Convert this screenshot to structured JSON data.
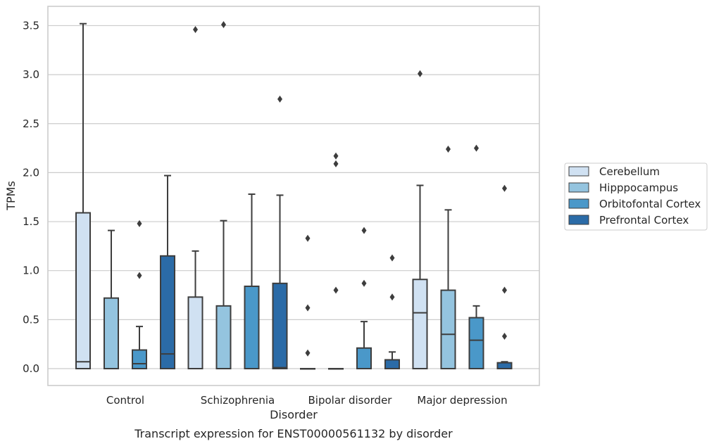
{
  "chart_data": {
    "type": "box",
    "caption": "Transcript expression for ENST00000561132 by disorder",
    "xlabel": "Disorder",
    "ylabel": "TPMs",
    "ylim": [
      -0.17,
      3.7
    ],
    "yticks": [
      0.0,
      0.5,
      1.0,
      1.5,
      2.0,
      2.5,
      3.0,
      3.5
    ],
    "ytick_labels": [
      "0.0",
      "0.5",
      "1.0",
      "1.5",
      "2.0",
      "2.5",
      "3.0",
      "3.5"
    ],
    "categories": [
      "Control",
      "Schizophrenia",
      "Bipolar disorder",
      "Major depression"
    ],
    "grid": "horizontal",
    "legend_position": "center-right",
    "series": [
      {
        "name": "Cerebellum",
        "color": "#d0e1f2",
        "boxes": [
          {
            "q1": 0.0,
            "median": 0.07,
            "q3": 1.59,
            "whisker_low": 0.0,
            "whisker_high": 3.52,
            "outliers": []
          },
          {
            "q1": 0.0,
            "median": 0.0,
            "q3": 0.73,
            "whisker_low": 0.0,
            "whisker_high": 1.2,
            "outliers": [
              3.46
            ]
          },
          {
            "q1": 0.0,
            "median": 0.0,
            "q3": 0.0,
            "whisker_low": 0.0,
            "whisker_high": 0.0,
            "outliers": [
              0.16,
              0.62,
              1.33
            ]
          },
          {
            "q1": 0.0,
            "median": 0.57,
            "q3": 0.91,
            "whisker_low": 0.0,
            "whisker_high": 1.87,
            "outliers": [
              3.01
            ]
          }
        ]
      },
      {
        "name": "Hipppocampus",
        "color": "#94c4df",
        "boxes": [
          {
            "q1": 0.0,
            "median": 0.0,
            "q3": 0.72,
            "whisker_low": 0.0,
            "whisker_high": 1.41,
            "outliers": []
          },
          {
            "q1": 0.0,
            "median": 0.0,
            "q3": 0.64,
            "whisker_low": 0.0,
            "whisker_high": 1.51,
            "outliers": [
              3.51
            ]
          },
          {
            "q1": 0.0,
            "median": 0.0,
            "q3": 0.0,
            "whisker_low": 0.0,
            "whisker_high": 0.0,
            "outliers": [
              0.8,
              2.09,
              2.17
            ]
          },
          {
            "q1": 0.0,
            "median": 0.35,
            "q3": 0.8,
            "whisker_low": 0.0,
            "whisker_high": 1.62,
            "outliers": [
              2.24
            ]
          }
        ]
      },
      {
        "name": "Orbitofontal Cortex",
        "color": "#4a98c9",
        "boxes": [
          {
            "q1": 0.0,
            "median": 0.05,
            "q3": 0.19,
            "whisker_low": 0.0,
            "whisker_high": 0.43,
            "outliers": [
              0.95,
              1.48
            ]
          },
          {
            "q1": 0.0,
            "median": 0.0,
            "q3": 0.84,
            "whisker_low": 0.0,
            "whisker_high": 1.78,
            "outliers": []
          },
          {
            "q1": 0.0,
            "median": 0.0,
            "q3": 0.21,
            "whisker_low": 0.0,
            "whisker_high": 0.48,
            "outliers": [
              0.87,
              1.41
            ]
          },
          {
            "q1": 0.0,
            "median": 0.29,
            "q3": 0.52,
            "whisker_low": 0.0,
            "whisker_high": 0.64,
            "outliers": [
              2.25
            ]
          }
        ]
      },
      {
        "name": "Prefrontal Cortex",
        "color": "#2b6ba7",
        "boxes": [
          {
            "q1": 0.0,
            "median": 0.15,
            "q3": 1.15,
            "whisker_low": 0.0,
            "whisker_high": 1.97,
            "outliers": []
          },
          {
            "q1": 0.0,
            "median": 0.01,
            "q3": 0.87,
            "whisker_low": 0.0,
            "whisker_high": 1.77,
            "outliers": [
              2.75
            ]
          },
          {
            "q1": 0.0,
            "median": 0.0,
            "q3": 0.09,
            "whisker_low": 0.0,
            "whisker_high": 0.17,
            "outliers": [
              0.73,
              1.13
            ]
          },
          {
            "q1": 0.0,
            "median": 0.0,
            "q3": 0.06,
            "whisker_low": 0.0,
            "whisker_high": 0.07,
            "outliers": [
              0.33,
              0.8,
              1.84
            ]
          }
        ]
      }
    ]
  }
}
